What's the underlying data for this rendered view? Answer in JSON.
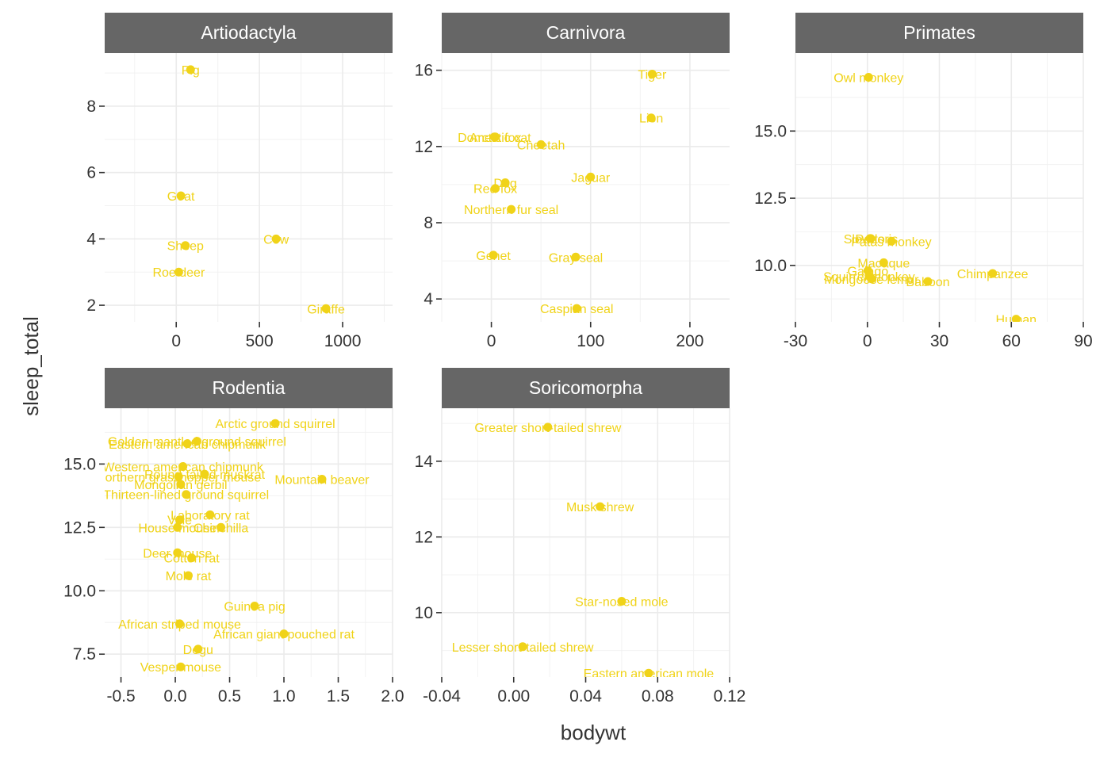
{
  "chart_data": {
    "type": "scatter",
    "facet_by": "order",
    "facet_scales": "free",
    "point_color": "#F0D318",
    "strip_fill": "#666666",
    "grid": true,
    "xlabel": "bodywt",
    "ylabel": "sleep_total",
    "panels": [
      {
        "name": "Artiodactyla",
        "xlim": [
          -430,
          1300
        ],
        "ylim": [
          1.5,
          9.6
        ],
        "xticks": [
          0,
          500,
          1000
        ],
        "xtick_labels": [
          "0",
          "500",
          "1000"
        ],
        "yticks": [
          2,
          4,
          6,
          8
        ],
        "ytick_labels": [
          "2",
          "4",
          "6",
          "8"
        ],
        "points": [
          {
            "label": "Pig",
            "x": 86,
            "y": 9.1
          },
          {
            "label": "Goat",
            "x": 28,
            "y": 5.3
          },
          {
            "label": "Sheep",
            "x": 55,
            "y": 3.8
          },
          {
            "label": "Cow",
            "x": 600,
            "y": 4.0
          },
          {
            "label": "Roe deer",
            "x": 15,
            "y": 3.0
          },
          {
            "label": "Giraffe",
            "x": 900,
            "y": 1.9
          }
        ]
      },
      {
        "name": "Carnivora",
        "xlim": [
          -50,
          240
        ],
        "ylim": [
          2.8,
          16.9
        ],
        "xticks": [
          0,
          100,
          200
        ],
        "xtick_labels": [
          "0",
          "100",
          "200"
        ],
        "yticks": [
          4,
          8,
          12,
          16
        ],
        "ytick_labels": [
          "4",
          "8",
          "12",
          "16"
        ],
        "points": [
          {
            "label": "Tiger",
            "x": 162,
            "y": 15.8
          },
          {
            "label": "Lion",
            "x": 161,
            "y": 13.5
          },
          {
            "label": "Domestic cat",
            "x": 3,
            "y": 12.5
          },
          {
            "label": "Arctic fox",
            "x": 4,
            "y": 12.5
          },
          {
            "label": "Cheetah",
            "x": 50,
            "y": 12.1
          },
          {
            "label": "Jaguar",
            "x": 100,
            "y": 10.4
          },
          {
            "label": "Dog",
            "x": 14,
            "y": 10.1
          },
          {
            "label": "Red fox",
            "x": 4,
            "y": 9.8
          },
          {
            "label": "Northern fur seal",
            "x": 20,
            "y": 8.7
          },
          {
            "label": "Genet",
            "x": 2,
            "y": 6.3
          },
          {
            "label": "Gray seal",
            "x": 85,
            "y": 6.2
          },
          {
            "label": "Caspian seal",
            "x": 86,
            "y": 3.5
          }
        ]
      },
      {
        "name": "Primates",
        "xlim": [
          -30,
          90
        ],
        "ylim": [
          7.9,
          17.9
        ],
        "xticks": [
          -30,
          0,
          30,
          60,
          90
        ],
        "xtick_labels": [
          "-30",
          "0",
          "30",
          "60",
          "90"
        ],
        "yticks": [
          10.0,
          12.5,
          15.0
        ],
        "ytick_labels": [
          "10.0",
          "12.5",
          "15.0"
        ],
        "points": [
          {
            "label": "Owl monkey",
            "x": 0.5,
            "y": 17.0
          },
          {
            "label": "Slow loris",
            "x": 1.4,
            "y": 11.0
          },
          {
            "label": "Potto",
            "x": 1.1,
            "y": 11.0
          },
          {
            "label": "Patas monkey",
            "x": 10.0,
            "y": 10.9
          },
          {
            "label": "Macaque",
            "x": 6.8,
            "y": 10.1
          },
          {
            "label": "Galago",
            "x": 0.2,
            "y": 9.8
          },
          {
            "label": "Squirrel monkey",
            "x": 0.7,
            "y": 9.6
          },
          {
            "label": "Mongoose lemur",
            "x": 1.7,
            "y": 9.5
          },
          {
            "label": "Baboon",
            "x": 25.2,
            "y": 9.4
          },
          {
            "label": "Chimpanzee",
            "x": 52.2,
            "y": 9.7
          },
          {
            "label": "Human",
            "x": 62.0,
            "y": 8.0
          }
        ]
      },
      {
        "name": "Rodentia",
        "xlim": [
          -0.65,
          2.0
        ],
        "ylim": [
          6.6,
          17.2
        ],
        "xticks": [
          -0.5,
          0.0,
          0.5,
          1.0,
          1.5,
          2.0
        ],
        "xtick_labels": [
          "-0.5",
          "0.0",
          "0.5",
          "1.0",
          "1.5",
          "2.0"
        ],
        "yticks": [
          7.5,
          10.0,
          12.5,
          15.0
        ],
        "ytick_labels": [
          "7.5",
          "10.0",
          "12.5",
          "15.0"
        ],
        "points": [
          {
            "label": "Arctic ground squirrel",
            "x": 0.92,
            "y": 16.6
          },
          {
            "label": "Golden-mantled ground squirrel",
            "x": 0.2,
            "y": 15.9
          },
          {
            "label": "Eastern american chipmunk",
            "x": 0.11,
            "y": 15.8
          },
          {
            "label": "Western american chipmunk",
            "x": 0.07,
            "y": 14.9
          },
          {
            "label": "Round-tailed muskrat",
            "x": 0.27,
            "y": 14.6
          },
          {
            "label": "Northern grasshopper mouse",
            "x": 0.03,
            "y": 14.5
          },
          {
            "label": "Mountain beaver",
            "x": 1.35,
            "y": 14.4
          },
          {
            "label": "Mongolian gerbil",
            "x": 0.05,
            "y": 14.2
          },
          {
            "label": "Thirteen-lined ground squirrel",
            "x": 0.1,
            "y": 13.8
          },
          {
            "label": "Laboratory rat",
            "x": 0.32,
            "y": 13.0
          },
          {
            "label": "Vole",
            "x": 0.04,
            "y": 12.8
          },
          {
            "label": "House mouse",
            "x": 0.02,
            "y": 12.5
          },
          {
            "label": "Chinchilla",
            "x": 0.42,
            "y": 12.5
          },
          {
            "label": "Deer mouse",
            "x": 0.02,
            "y": 11.5
          },
          {
            "label": "Cotton rat",
            "x": 0.15,
            "y": 11.3
          },
          {
            "label": "Mole rat",
            "x": 0.12,
            "y": 10.6
          },
          {
            "label": "Guinea pig",
            "x": 0.73,
            "y": 9.4
          },
          {
            "label": "African striped mouse",
            "x": 0.04,
            "y": 8.7
          },
          {
            "label": "African giant pouched rat",
            "x": 1.0,
            "y": 8.3
          },
          {
            "label": "Degu",
            "x": 0.21,
            "y": 7.7
          },
          {
            "label": "Vesper mouse",
            "x": 0.05,
            "y": 7.0
          }
        ]
      },
      {
        "name": "Soricomorpha",
        "xlim": [
          -0.04,
          0.12
        ],
        "ylim": [
          8.3,
          15.4
        ],
        "xticks": [
          -0.04,
          0.0,
          0.04,
          0.08,
          0.12
        ],
        "xtick_labels": [
          "-0.04",
          "0.00",
          "0.04",
          "0.08",
          "0.12"
        ],
        "yticks": [
          10,
          12,
          14
        ],
        "ytick_labels": [
          "10",
          "12",
          "14"
        ],
        "points": [
          {
            "label": "Greater short-tailed shrew",
            "x": 0.019,
            "y": 14.9
          },
          {
            "label": "Musk shrew",
            "x": 0.048,
            "y": 12.8
          },
          {
            "label": "Star-nosed mole",
            "x": 0.06,
            "y": 10.3
          },
          {
            "label": "Lesser short-tailed shrew",
            "x": 0.005,
            "y": 9.1
          },
          {
            "label": "Eastern american mole",
            "x": 0.075,
            "y": 8.4
          }
        ]
      }
    ]
  }
}
